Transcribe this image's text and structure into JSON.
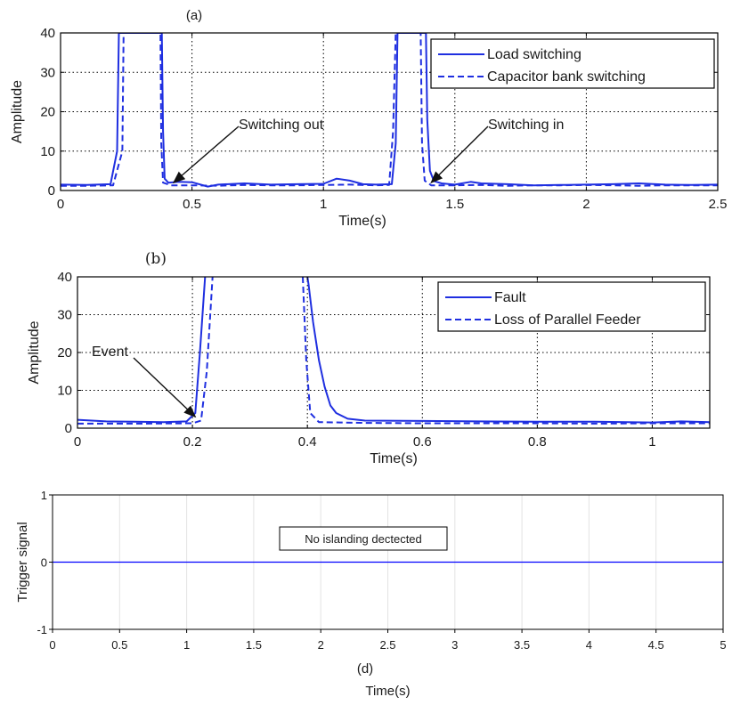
{
  "colors": {
    "series": "#1f2fe0",
    "axis": "#000000",
    "grid": "#000000",
    "grid_light": "#e3e3e3",
    "trigger": "#0000ff"
  },
  "chart_data": [
    {
      "type": "line",
      "title": "(a)",
      "xlabel": "Time(s)",
      "ylabel": "Amplitude",
      "xlim": [
        0,
        2.5
      ],
      "ylim": [
        0,
        40
      ],
      "xticks": [
        0,
        0.5,
        1,
        1.5,
        2,
        2.5
      ],
      "xtick_labels": [
        "0",
        "0.5",
        "1",
        "1.5",
        "2",
        "2.5"
      ],
      "yticks": [
        0,
        10,
        20,
        30,
        40
      ],
      "ytick_labels": [
        "0",
        "10",
        "20",
        "30",
        "40"
      ],
      "grid": true,
      "legend_position": "top-right",
      "series": [
        {
          "name": "Load switching",
          "style": "solid",
          "x": [
            0,
            0.1,
            0.19,
            0.215,
            0.222,
            0.23,
            0.385,
            0.39,
            0.396,
            0.41,
            0.45,
            0.5,
            0.56,
            0.6,
            0.7,
            0.8,
            0.9,
            1.0,
            1.05,
            1.1,
            1.15,
            1.2,
            1.26,
            1.275,
            1.282,
            1.288,
            1.39,
            1.395,
            1.405,
            1.42,
            1.45,
            1.5,
            1.56,
            1.6,
            1.7,
            1.8,
            1.9,
            2.0,
            2.1,
            2.2,
            2.3,
            2.4,
            2.5
          ],
          "y": [
            1.5,
            1.4,
            1.6,
            10,
            40,
            40,
            40,
            15,
            3,
            2,
            2.2,
            2.1,
            1.0,
            1.5,
            1.8,
            1.5,
            1.6,
            1.7,
            3.0,
            2.5,
            1.6,
            1.5,
            1.6,
            12,
            40,
            40,
            40,
            18,
            5,
            2.4,
            1.8,
            1.5,
            2.2,
            1.8,
            1.6,
            1.3,
            1.4,
            1.5,
            1.6,
            1.8,
            1.5,
            1.4,
            1.5
          ]
        },
        {
          "name": "Capacitor bank switching",
          "style": "dashed",
          "x": [
            0,
            0.1,
            0.2,
            0.235,
            0.24,
            0.245,
            0.38,
            0.383,
            0.39,
            0.42,
            0.5,
            0.6,
            0.7,
            0.8,
            0.9,
            1.0,
            1.1,
            1.2,
            1.25,
            1.265,
            1.275,
            1.37,
            1.375,
            1.385,
            1.41,
            1.5,
            1.6,
            1.7,
            1.8,
            1.9,
            2.0,
            2.1,
            2.2,
            2.3,
            2.4,
            2.5
          ],
          "y": [
            1.2,
            1.2,
            1.3,
            10,
            40,
            40,
            40,
            12,
            2,
            1.3,
            1.3,
            1.2,
            1.4,
            1.3,
            1.3,
            1.4,
            1.5,
            1.3,
            1.4,
            15,
            40,
            40,
            12,
            2.5,
            1.3,
            1.3,
            1.4,
            1.2,
            1.3,
            1.3,
            1.4,
            1.3,
            1.2,
            1.3,
            1.3,
            1.3
          ]
        }
      ],
      "annotations": [
        {
          "text": "Switching out",
          "points_to": [
            0.43,
            2
          ]
        },
        {
          "text": "Switching in",
          "points_to": [
            1.41,
            2
          ]
        }
      ]
    },
    {
      "type": "line",
      "title": "(b)",
      "xlabel": "Time(s)",
      "ylabel": "Amplitude",
      "xlim": [
        0,
        1.1
      ],
      "ylim": [
        0,
        40
      ],
      "xticks": [
        0,
        0.2,
        0.4,
        0.6,
        0.8,
        1
      ],
      "xtick_labels": [
        "0",
        "0.2",
        "0.4",
        "0.6",
        "0.8",
        "1"
      ],
      "yticks": [
        0,
        10,
        20,
        30,
        40
      ],
      "ytick_labels": [
        "0",
        "10",
        "20",
        "30",
        "40"
      ],
      "grid": true,
      "legend_position": "top-right",
      "series": [
        {
          "name": "Fault",
          "style": "solid",
          "x": [
            0,
            0.05,
            0.1,
            0.15,
            0.19,
            0.205,
            0.213,
            0.222,
            0.4,
            0.402,
            0.41,
            0.42,
            0.43,
            0.44,
            0.45,
            0.47,
            0.5,
            0.6,
            0.7,
            0.8,
            0.9,
            1.0,
            1.05,
            1.1
          ],
          "y": [
            2.2,
            1.8,
            1.7,
            1.6,
            1.8,
            4,
            20,
            40,
            40,
            38,
            28,
            18,
            11,
            6,
            4,
            2.5,
            2.0,
            1.9,
            1.8,
            1.7,
            1.7,
            1.5,
            1.8,
            1.6
          ],
          "gap_after_x": 0.222
        },
        {
          "name": "Loss of Parallel Feeder",
          "style": "dashed",
          "x": [
            0,
            0.1,
            0.2,
            0.215,
            0.225,
            0.235,
            0.392,
            0.398,
            0.405,
            0.42,
            0.5,
            0.6,
            0.7,
            0.8,
            0.9,
            1.0,
            1.1
          ],
          "y": [
            1.2,
            1.2,
            1.3,
            2,
            15,
            40,
            40,
            18,
            4,
            1.6,
            1.4,
            1.3,
            1.3,
            1.3,
            1.2,
            1.3,
            1.3
          ],
          "gap_after_x": 0.235
        }
      ],
      "annotations": [
        {
          "text": "Event",
          "points_to": [
            0.205,
            3
          ]
        }
      ]
    },
    {
      "type": "line",
      "title": "",
      "caption": "(d)",
      "xlabel": "Time(s)",
      "ylabel": "Trigger signal",
      "xlim": [
        0,
        5
      ],
      "ylim": [
        -1,
        1
      ],
      "xticks": [
        0,
        0.5,
        1,
        1.5,
        2,
        2.5,
        3,
        3.5,
        4,
        4.5,
        5
      ],
      "xtick_labels": [
        "0",
        "0.5",
        "1",
        "1.5",
        "2",
        "2.5",
        "3",
        "3.5",
        "4",
        "4.5",
        "5"
      ],
      "yticks": [
        -1,
        0,
        1
      ],
      "ytick_labels": [
        "-1",
        "0",
        "1"
      ],
      "grid": true,
      "series": [
        {
          "x": [
            0,
            5
          ],
          "y": [
            0,
            0
          ],
          "style": "solid"
        }
      ],
      "text_box": "No islanding dectected"
    }
  ]
}
